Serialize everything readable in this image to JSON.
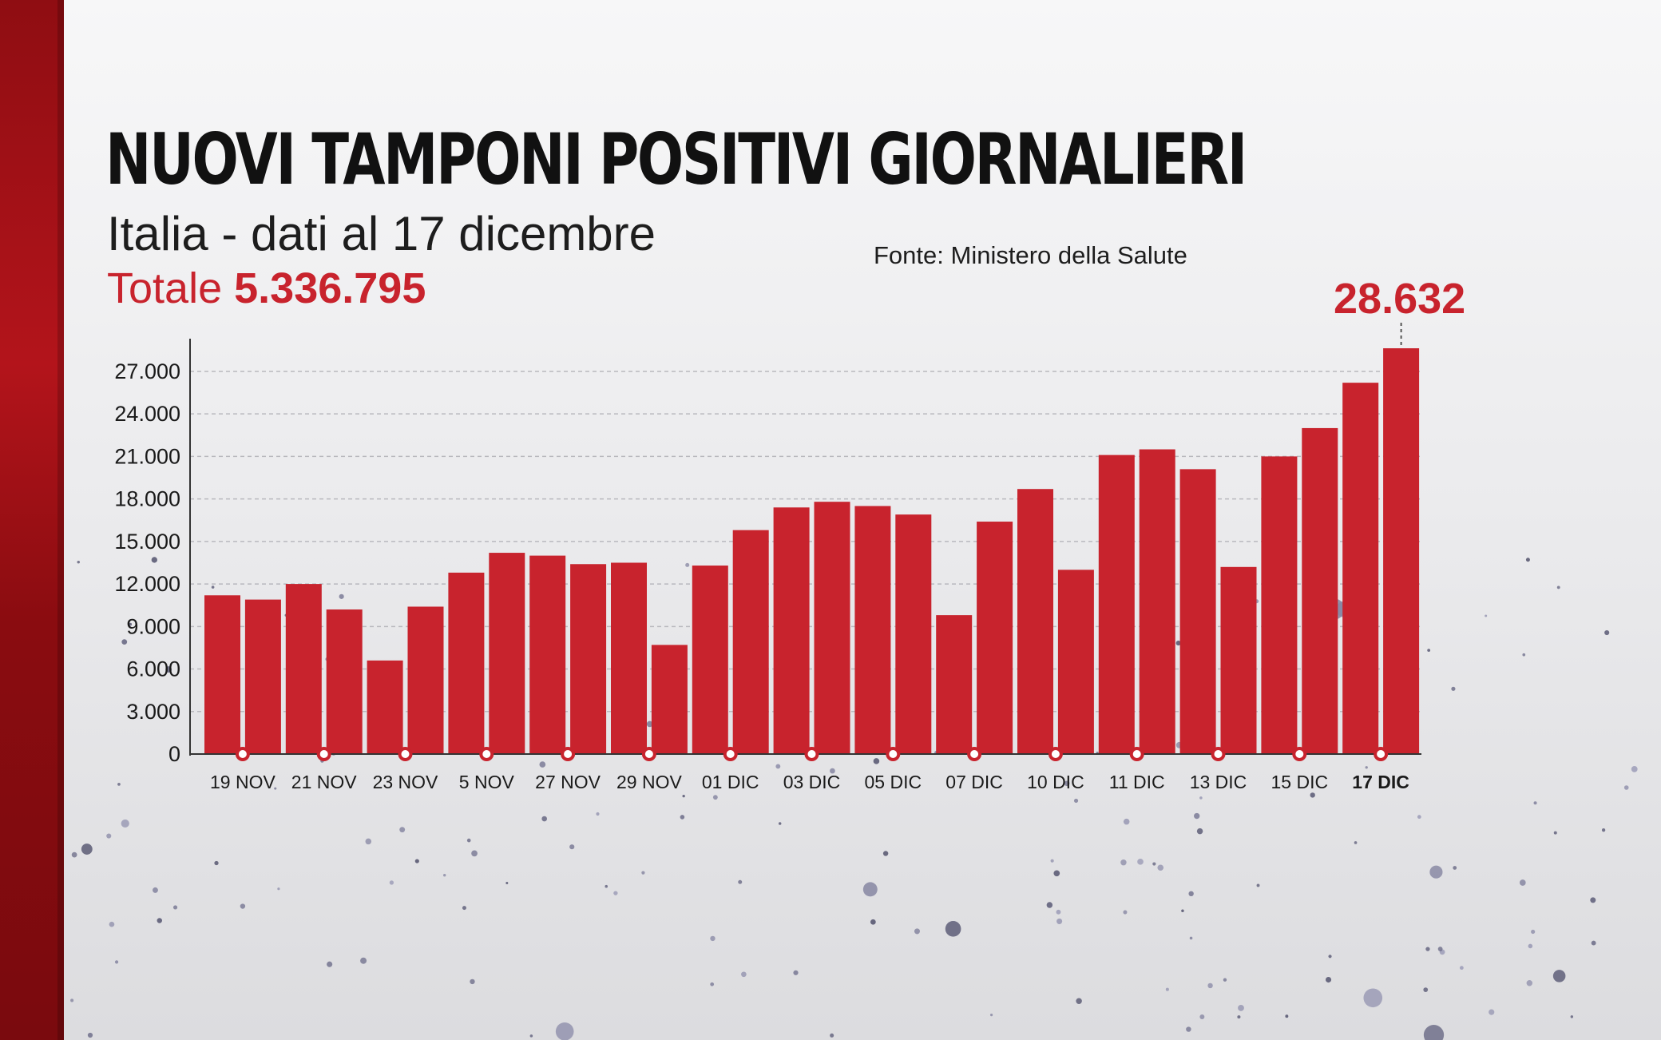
{
  "header": {
    "title": "NUOVI TAMPONI POSITIVI GIORNALIERI",
    "subtitle": "Italia - dati al 17 dicembre",
    "source": "Fonte: Ministero della Salute",
    "total_label": "Totale",
    "total_value": "5.336.795"
  },
  "colors": {
    "accent": "#c8232d",
    "bar": "#c8232d",
    "text": "#111111",
    "stripe": "#a3121a"
  },
  "chart_data": {
    "type": "bar",
    "title": "NUOVI TAMPONI POSITIVI GIORNALIERI",
    "subtitle": "Italia - dati al 17 dicembre",
    "xlabel": "",
    "ylabel": "",
    "ylim": [
      0,
      28632
    ],
    "yticks": [
      0,
      3000,
      6000,
      9000,
      12000,
      15000,
      18000,
      21000,
      24000,
      27000
    ],
    "ytick_labels": [
      "0",
      "3.000",
      "6.000",
      "9.000",
      "12.000",
      "15.000",
      "18.000",
      "21.000",
      "24.000",
      "27.000"
    ],
    "grid": "horizontal-dashed",
    "values": [
      11200,
      10900,
      12000,
      10200,
      6600,
      10400,
      12800,
      14200,
      14000,
      13400,
      13500,
      7700,
      13300,
      15800,
      17400,
      17800,
      17500,
      16900,
      9800,
      16400,
      18700,
      13000,
      21100,
      21500,
      20100,
      13200,
      21000,
      23000,
      26200,
      28632
    ],
    "tick_labels": [
      "19 NOV",
      "21 NOV",
      "23 NOV",
      "5 NOV",
      "27 NOV",
      "29 NOV",
      "01 DIC",
      "03 DIC",
      "05 DIC",
      "07 DIC",
      "10 DIC",
      "11 DIC",
      "13 DIC",
      "15 DIC",
      "17 DIC"
    ],
    "tick_positions": [
      1,
      3,
      5,
      7,
      9,
      11,
      13,
      15,
      17,
      19,
      21,
      23,
      25,
      27,
      29
    ],
    "highlight_label": "28.632",
    "highlight_index": 29
  }
}
